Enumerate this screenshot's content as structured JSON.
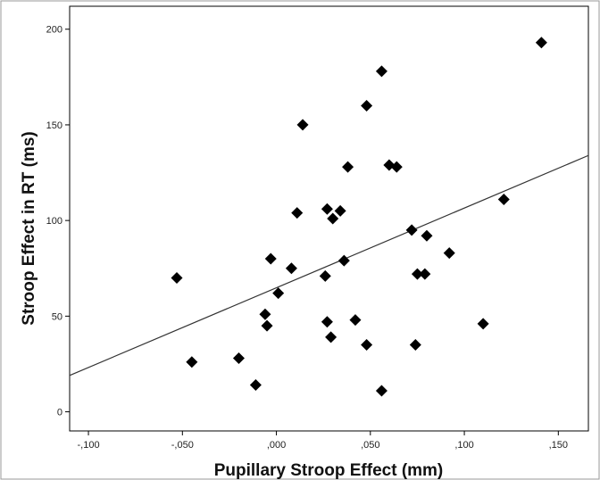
{
  "chart_data": {
    "type": "scatter",
    "title": "",
    "xlabel": "Pupillary Stroop Effect (mm)",
    "ylabel": "Stroop Effect in RT (ms)",
    "xlim": [
      -0.11,
      0.166
    ],
    "ylim": [
      -10,
      212
    ],
    "x_ticks": [
      -0.1,
      -0.05,
      0,
      0.05,
      0.1,
      0.15
    ],
    "x_tick_labels": [
      "-,100",
      "-,050",
      ",000",
      ",050",
      ",100",
      ",150"
    ],
    "y_ticks": [
      0,
      50,
      100,
      150,
      200
    ],
    "y_tick_labels": [
      "0",
      "50",
      "100",
      "150",
      "200"
    ],
    "grid": false,
    "legend": "none",
    "marker": "diamond",
    "marker_color": "#000000",
    "line_color": "#333333",
    "points": [
      {
        "x": -0.053,
        "y": 70
      },
      {
        "x": -0.045,
        "y": 26
      },
      {
        "x": -0.02,
        "y": 28
      },
      {
        "x": -0.011,
        "y": 14
      },
      {
        "x": -0.006,
        "y": 51
      },
      {
        "x": -0.005,
        "y": 45
      },
      {
        "x": -0.003,
        "y": 80
      },
      {
        "x": 0.001,
        "y": 62
      },
      {
        "x": 0.008,
        "y": 75
      },
      {
        "x": 0.011,
        "y": 104
      },
      {
        "x": 0.014,
        "y": 150
      },
      {
        "x": 0.026,
        "y": 71
      },
      {
        "x": 0.027,
        "y": 106
      },
      {
        "x": 0.027,
        "y": 47
      },
      {
        "x": 0.029,
        "y": 39
      },
      {
        "x": 0.03,
        "y": 101
      },
      {
        "x": 0.034,
        "y": 105
      },
      {
        "x": 0.036,
        "y": 79
      },
      {
        "x": 0.038,
        "y": 128
      },
      {
        "x": 0.042,
        "y": 48
      },
      {
        "x": 0.048,
        "y": 160
      },
      {
        "x": 0.048,
        "y": 35
      },
      {
        "x": 0.056,
        "y": 178
      },
      {
        "x": 0.056,
        "y": 11
      },
      {
        "x": 0.06,
        "y": 129
      },
      {
        "x": 0.064,
        "y": 128
      },
      {
        "x": 0.072,
        "y": 95
      },
      {
        "x": 0.075,
        "y": 72
      },
      {
        "x": 0.074,
        "y": 35
      },
      {
        "x": 0.08,
        "y": 92
      },
      {
        "x": 0.079,
        "y": 72
      },
      {
        "x": 0.092,
        "y": 83
      },
      {
        "x": 0.11,
        "y": 46
      },
      {
        "x": 0.121,
        "y": 111
      },
      {
        "x": 0.141,
        "y": 193
      }
    ],
    "fit_line": {
      "x": [
        -0.11,
        0.166
      ],
      "y": [
        19,
        134
      ]
    }
  }
}
